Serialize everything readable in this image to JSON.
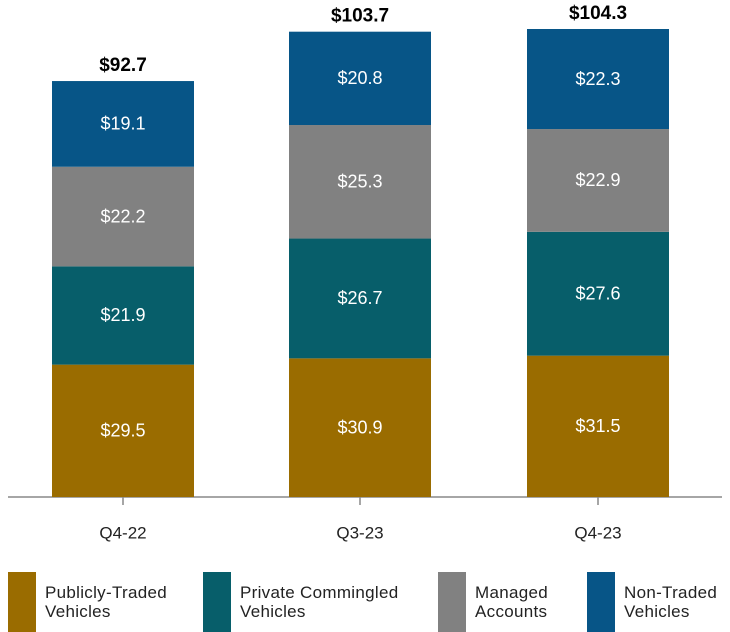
{
  "chart_data": {
    "type": "stacked_bar",
    "categories": [
      "Q4-22",
      "Q3-23",
      "Q4-23"
    ],
    "series": [
      {
        "name": "Publicly-Traded Vehicles",
        "color": "#9a6c00",
        "values": [
          29.5,
          30.9,
          31.5
        ],
        "value_labels": [
          "$29.5",
          "$30.9",
          "$31.5"
        ]
      },
      {
        "name": "Private Commingled Vehicles",
        "color": "#075e6a",
        "values": [
          21.9,
          26.7,
          27.6
        ],
        "value_labels": [
          "$21.9",
          "$26.7",
          "$27.6"
        ]
      },
      {
        "name": "Managed Accounts",
        "color": "#818181",
        "values": [
          22.2,
          25.3,
          22.9
        ],
        "value_labels": [
          "$22.2",
          "$25.3",
          "$22.9"
        ]
      },
      {
        "name": "Non-Traded Vehicles",
        "color": "#075587",
        "values": [
          19.1,
          20.8,
          22.3
        ],
        "value_labels": [
          "$19.1",
          "$20.8",
          "$22.3"
        ]
      }
    ],
    "totals": {
      "values": [
        92.7,
        103.7,
        104.3
      ],
      "value_labels": [
        "$92.7",
        "$103.7",
        "$104.3"
      ]
    }
  }
}
